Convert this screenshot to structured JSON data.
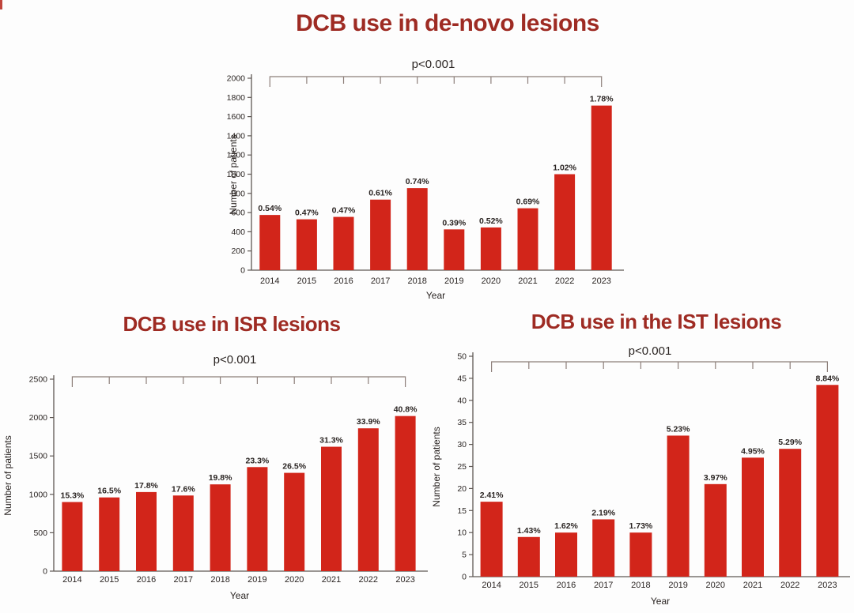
{
  "colors": {
    "bar": "#d2251a",
    "title": "#9e2b23",
    "text": "#2b2523",
    "axis": "#5f5854",
    "bracket": "#8d7f7a",
    "background": "#fdfdfd"
  },
  "chart_data": [
    {
      "type": "bar",
      "title": "DCB use in de-novo lesions",
      "annotation": "p<0.001",
      "xlabel": "Year",
      "ylabel": "Number of patients",
      "categories": [
        "2014",
        "2015",
        "2016",
        "2017",
        "2018",
        "2019",
        "2020",
        "2021",
        "2022",
        "2023"
      ],
      "values": [
        575,
        530,
        555,
        735,
        855,
        425,
        445,
        645,
        1000,
        1715
      ],
      "bar_labels": [
        "0.54%",
        "0.47%",
        "0.47%",
        "0.61%",
        "0.74%",
        "0.39%",
        "0.52%",
        "0.69%",
        "1.02%",
        "1.78%"
      ],
      "ylim": [
        0,
        2000
      ],
      "ytick_step": 200,
      "grid": false,
      "legend": false
    },
    {
      "type": "bar",
      "title": "DCB use in ISR lesions",
      "annotation": "p<0.001",
      "xlabel": "Year",
      "ylabel": "Number of patients",
      "categories": [
        "2014",
        "2015",
        "2016",
        "2017",
        "2018",
        "2019",
        "2020",
        "2021",
        "2022",
        "2023"
      ],
      "values": [
        900,
        960,
        1030,
        985,
        1130,
        1355,
        1280,
        1620,
        1860,
        2020
      ],
      "bar_labels": [
        "15.3%",
        "16.5%",
        "17.8%",
        "17.6%",
        "19.8%",
        "23.3%",
        "26.5%",
        "31.3%",
        "33.9%",
        "40.8%"
      ],
      "ylim": [
        0,
        2500
      ],
      "ytick_step": 500,
      "grid": false,
      "legend": false
    },
    {
      "type": "bar",
      "title": "DCB use in the IST lesions",
      "annotation": "p<0.001",
      "xlabel": "Year",
      "ylabel": "Number of patients",
      "categories": [
        "2014",
        "2015",
        "2016",
        "2017",
        "2018",
        "2019",
        "2020",
        "2021",
        "2022",
        "2023"
      ],
      "values": [
        17,
        9,
        10,
        13,
        10,
        32,
        21,
        27,
        29,
        43.5
      ],
      "bar_labels": [
        "2.41%",
        "1.43%",
        "1.62%",
        "2.19%",
        "1.73%",
        "5.23%",
        "3.97%",
        "4.95%",
        "5.29%",
        "8.84%"
      ],
      "ylim": [
        0,
        50
      ],
      "ytick_step": 5,
      "grid": false,
      "legend": false
    }
  ]
}
